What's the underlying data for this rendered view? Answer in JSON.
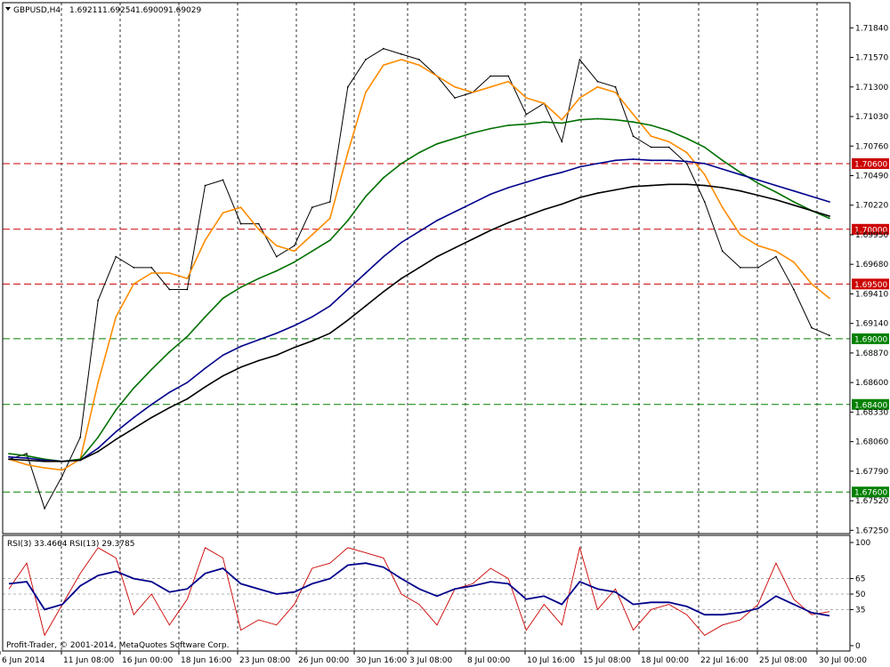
{
  "chart_data": [
    {
      "type": "line",
      "title": "GBPUSD,H4",
      "ohlc": {
        "open": "1.69211",
        "high": "1.69254",
        "low": "1.69009",
        "close": "1.69029"
      },
      "price_ticks": [
        "1.71840",
        "1.71570",
        "1.71300",
        "1.71030",
        "1.70760",
        "1.70490",
        "1.70220",
        "1.69950",
        "1.69680",
        "1.69410",
        "1.69140",
        "1.68870",
        "1.68600",
        "1.68330",
        "1.68060",
        "1.67790",
        "1.67520",
        "1.67250"
      ],
      "ylim": [
        1.6722,
        1.7207
      ],
      "levels": [
        {
          "label": "1.70600",
          "value": 1.706,
          "color": "#cc0000"
        },
        {
          "label": "1.70000",
          "value": 1.7,
          "color": "#cc0000"
        },
        {
          "label": "1.69500",
          "value": 1.695,
          "color": "#cc0000"
        },
        {
          "label": "1.69000",
          "value": 1.69,
          "color": "#008000"
        },
        {
          "label": "1.68400",
          "value": 1.684,
          "color": "#008000"
        },
        {
          "label": "1.67600",
          "value": 1.676,
          "color": "#008000"
        }
      ],
      "x_ticks": [
        "6 Jun 2014",
        "11 Jun 08:00",
        "16 Jun 00:00",
        "18 Jun 16:00",
        "23 Jun 08:00",
        "26 Jun 00:00",
        "30 Jun 16:00",
        "3 Jul 08:00",
        "8 Jul 00:00",
        "10 Jul 16:00",
        "15 Jul 08:00",
        "18 Jul 00:00",
        "22 Jul 16:00",
        "25 Jul 08:00",
        "30 Jul 00:00"
      ],
      "x": [
        0,
        5,
        10,
        15,
        20,
        25,
        30,
        35,
        40,
        45,
        50,
        55,
        60,
        65,
        70,
        75,
        80,
        85,
        90,
        95,
        100,
        105,
        110,
        115,
        120,
        125,
        130,
        135,
        140,
        145,
        150,
        155,
        160,
        165,
        170,
        175,
        180,
        185,
        190,
        195,
        200,
        205,
        210,
        215,
        220,
        225,
        230
      ],
      "series": [
        {
          "color": "#000000",
          "values": [
            1.679,
            1.6795,
            1.6745,
            1.6775,
            1.681,
            1.6935,
            1.6975,
            1.6965,
            1.6965,
            1.6945,
            1.6945,
            1.704,
            1.7045,
            1.7005,
            1.7005,
            1.6975,
            1.6985,
            1.702,
            1.7025,
            1.713,
            1.7155,
            1.7165,
            1.716,
            1.7155,
            1.714,
            1.712,
            1.7125,
            1.714,
            1.714,
            1.7105,
            1.7115,
            1.708,
            1.7155,
            1.7135,
            1.713,
            1.7085,
            1.7075,
            1.7075,
            1.706,
            1.7025,
            1.698,
            1.6965,
            1.6965,
            1.6975,
            1.6945,
            1.691,
            1.6903
          ]
        },
        {
          "color": "#ff8c00",
          "values": [
            1.679,
            1.6785,
            1.6782,
            1.678,
            1.679,
            1.686,
            1.692,
            1.695,
            1.696,
            1.696,
            1.6955,
            1.699,
            1.7015,
            1.702,
            1.7,
            1.6985,
            1.698,
            1.6995,
            1.701,
            1.707,
            1.7125,
            1.715,
            1.7155,
            1.715,
            1.714,
            1.713,
            1.7125,
            1.713,
            1.7135,
            1.712,
            1.7115,
            1.71,
            1.712,
            1.713,
            1.7125,
            1.7105,
            1.7085,
            1.708,
            1.707,
            1.705,
            1.702,
            1.6995,
            1.6985,
            1.698,
            1.697,
            1.695,
            1.6937
          ]
        },
        {
          "color": "#007000",
          "values": [
            1.6795,
            1.6793,
            1.679,
            1.6788,
            1.679,
            1.681,
            1.6835,
            1.6855,
            1.6872,
            1.6888,
            1.6902,
            1.692,
            1.6937,
            1.6947,
            1.6955,
            1.6962,
            1.697,
            1.698,
            1.699,
            1.7008,
            1.703,
            1.7047,
            1.706,
            1.707,
            1.7078,
            1.7083,
            1.7088,
            1.7092,
            1.7095,
            1.7096,
            1.7098,
            1.7097,
            1.71,
            1.7101,
            1.71,
            1.7098,
            1.7095,
            1.709,
            1.7083,
            1.7075,
            1.7063,
            1.7052,
            1.7042,
            1.7034,
            1.7025,
            1.7017,
            1.701
          ]
        },
        {
          "color": "#00008b",
          "values": [
            1.6792,
            1.6791,
            1.6789,
            1.6788,
            1.6789,
            1.68,
            1.6815,
            1.6828,
            1.684,
            1.6851,
            1.686,
            1.6873,
            1.6885,
            1.6893,
            1.6899,
            1.6905,
            1.6912,
            1.692,
            1.693,
            1.6945,
            1.696,
            1.6975,
            1.6988,
            1.6998,
            1.7008,
            1.7016,
            1.7024,
            1.7032,
            1.7038,
            1.7043,
            1.7048,
            1.7052,
            1.7057,
            1.706,
            1.7063,
            1.7064,
            1.7063,
            1.7063,
            1.7062,
            1.706,
            1.7055,
            1.705,
            1.7045,
            1.704,
            1.7035,
            1.703,
            1.7025
          ]
        },
        {
          "color": "#000000",
          "values": [
            1.679,
            1.6789,
            1.6788,
            1.6788,
            1.6789,
            1.6797,
            1.6808,
            1.6818,
            1.6828,
            1.6837,
            1.6845,
            1.6856,
            1.6866,
            1.6874,
            1.688,
            1.6885,
            1.6892,
            1.6898,
            1.6905,
            1.6917,
            1.693,
            1.6943,
            1.6955,
            1.6965,
            1.6975,
            1.6983,
            1.6991,
            1.6999,
            1.7006,
            1.7012,
            1.7018,
            1.7023,
            1.7029,
            1.7033,
            1.7036,
            1.7039,
            1.704,
            1.7041,
            1.7041,
            1.704,
            1.7038,
            1.7035,
            1.7031,
            1.7027,
            1.7022,
            1.7017,
            1.7012
          ]
        }
      ]
    },
    {
      "type": "line",
      "title": "RSI(3) 33.4664  RSI(13) 29.3785",
      "y_ticks": [
        "100",
        "65",
        "50",
        "35",
        "0"
      ],
      "ylim": [
        0,
        100
      ],
      "x": [
        0,
        5,
        10,
        15,
        20,
        25,
        30,
        35,
        40,
        45,
        50,
        55,
        60,
        65,
        70,
        75,
        80,
        85,
        90,
        95,
        100,
        105,
        110,
        115,
        120,
        125,
        130,
        135,
        140,
        145,
        150,
        155,
        160,
        165,
        170,
        175,
        180,
        185,
        190,
        195,
        200,
        205,
        210,
        215,
        220,
        225,
        230
      ],
      "series": [
        {
          "color": "#cc0000",
          "values": [
            55,
            80,
            10,
            40,
            70,
            95,
            85,
            30,
            50,
            20,
            45,
            95,
            85,
            15,
            25,
            20,
            40,
            75,
            80,
            95,
            90,
            85,
            50,
            40,
            20,
            55,
            60,
            75,
            65,
            15,
            40,
            20,
            95,
            35,
            55,
            15,
            35,
            40,
            30,
            10,
            20,
            25,
            40,
            80,
            45,
            30,
            33
          ]
        },
        {
          "color": "#00008b",
          "values": [
            60,
            62,
            35,
            40,
            58,
            68,
            72,
            65,
            62,
            52,
            55,
            70,
            75,
            60,
            55,
            50,
            52,
            60,
            65,
            78,
            80,
            76,
            65,
            55,
            48,
            55,
            58,
            62,
            60,
            45,
            48,
            40,
            62,
            55,
            52,
            40,
            42,
            42,
            38,
            30,
            30,
            32,
            36,
            48,
            40,
            32,
            29
          ]
        }
      ]
    }
  ],
  "footer": "Profit-Trader, © 2001-2014, MetaQuotes Software Corp."
}
